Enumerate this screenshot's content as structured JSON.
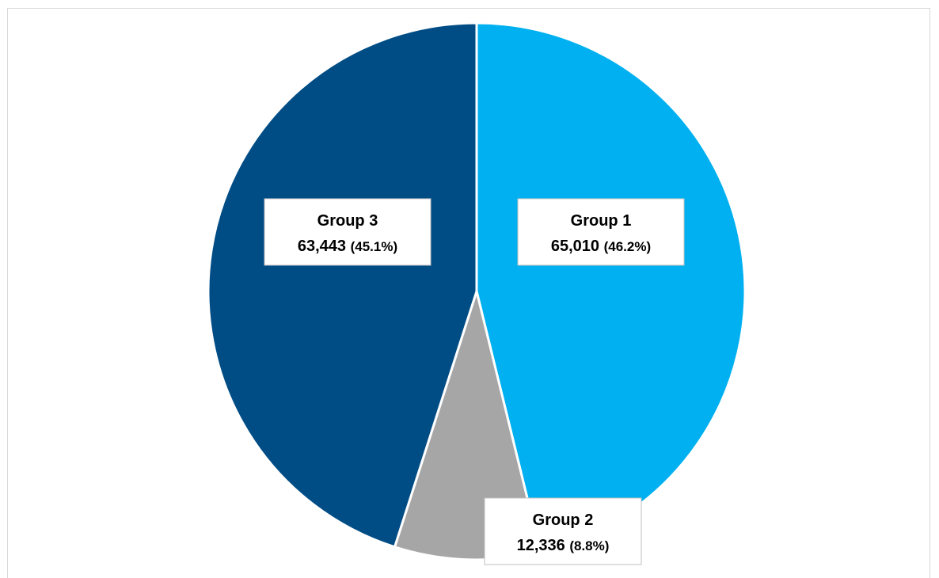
{
  "chart_data": {
    "type": "pie",
    "title": "",
    "slices": [
      {
        "name": "Group 1",
        "value": 65010,
        "value_label": "65,010",
        "percent_label": "(46.2%)",
        "color": "#00b0f0"
      },
      {
        "name": "Group 2",
        "value": 12336,
        "value_label": "12,336",
        "percent_label": "(8.8%)",
        "color": "#a6a6a6"
      },
      {
        "name": "Group 3",
        "value": 63443,
        "value_label": "63,443",
        "percent_label": "(45.1%)",
        "color": "#004c85"
      }
    ],
    "start_angle": "12 o'clock",
    "direction": "clockwise",
    "slice_border_color": "#ffffff",
    "label_box_border_color": "#bfbfbf",
    "legend": "none"
  }
}
